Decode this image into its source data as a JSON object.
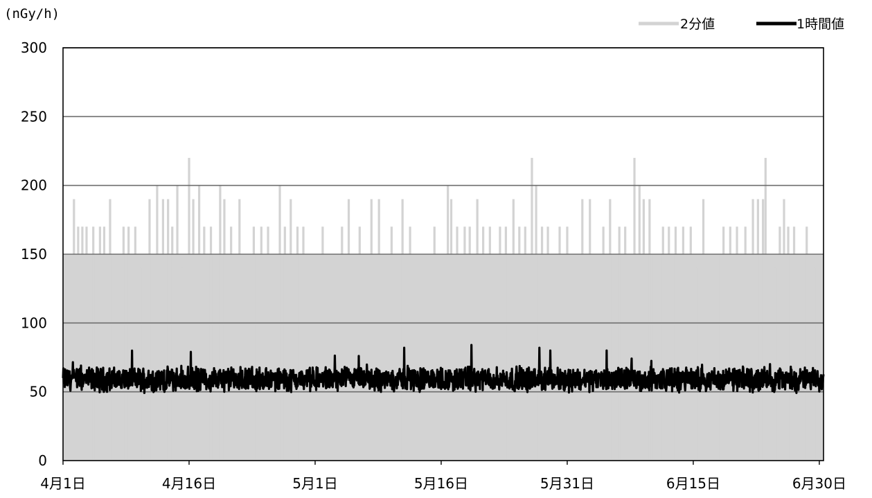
{
  "chart_data": {
    "type": "line",
    "unit_label": "(nGy/h)",
    "title": "",
    "ylim": [
      0,
      300
    ],
    "y_ticks": [
      0,
      50,
      100,
      150,
      200,
      250,
      300
    ],
    "x_tick_labels": [
      "4月1日",
      "4月16日",
      "5月1日",
      "5月16日",
      "5月31日",
      "6月15日",
      "6月30日"
    ],
    "x_tick_days": [
      0,
      15,
      30,
      45,
      60,
      75,
      90
    ],
    "x_range_days": [
      0,
      90.5
    ],
    "grid": true,
    "legend_position": "top-right",
    "series": [
      {
        "name": "2分値",
        "color": "#d3d3d3",
        "description": "two-minute readings (dense, filled look)",
        "baseline": 150,
        "spikes": [
          [
            0.3,
            140
          ],
          [
            0.7,
            120
          ],
          [
            1.3,
            190
          ],
          [
            1.8,
            170
          ],
          [
            2.3,
            170
          ],
          [
            2.8,
            170
          ],
          [
            3.6,
            170
          ],
          [
            4.4,
            170
          ],
          [
            4.9,
            170
          ],
          [
            5.6,
            190
          ],
          [
            6.2,
            150
          ],
          [
            7.2,
            170
          ],
          [
            7.8,
            170
          ],
          [
            8.6,
            170
          ],
          [
            9.2,
            140
          ],
          [
            10.3,
            190
          ],
          [
            11.2,
            200
          ],
          [
            11.9,
            190
          ],
          [
            12.5,
            190
          ],
          [
            13.0,
            170
          ],
          [
            13.6,
            200
          ],
          [
            14.2,
            140
          ],
          [
            15.0,
            220
          ],
          [
            15.5,
            190
          ],
          [
            16.2,
            200
          ],
          [
            16.8,
            170
          ],
          [
            17.6,
            170
          ],
          [
            18.7,
            200
          ],
          [
            19.2,
            190
          ],
          [
            20.0,
            170
          ],
          [
            21.0,
            190
          ],
          [
            21.9,
            150
          ],
          [
            22.7,
            170
          ],
          [
            23.6,
            170
          ],
          [
            24.4,
            170
          ],
          [
            25.8,
            200
          ],
          [
            26.4,
            170
          ],
          [
            27.1,
            190
          ],
          [
            27.9,
            170
          ],
          [
            28.6,
            170
          ],
          [
            29.6,
            150
          ],
          [
            30.2,
            150
          ],
          [
            30.9,
            170
          ],
          [
            32.5,
            150
          ],
          [
            33.2,
            170
          ],
          [
            34.0,
            190
          ],
          [
            35.3,
            170
          ],
          [
            36.7,
            190
          ],
          [
            37.6,
            190
          ],
          [
            39.1,
            170
          ],
          [
            40.4,
            190
          ],
          [
            41.3,
            170
          ],
          [
            42.0,
            150
          ],
          [
            44.2,
            170
          ],
          [
            45.8,
            200
          ],
          [
            46.2,
            190
          ],
          [
            46.9,
            170
          ],
          [
            47.8,
            170
          ],
          [
            48.4,
            170
          ],
          [
            49.3,
            190
          ],
          [
            50.0,
            170
          ],
          [
            50.8,
            170
          ],
          [
            51.5,
            120
          ],
          [
            52.0,
            170
          ],
          [
            52.7,
            170
          ],
          [
            53.6,
            190
          ],
          [
            54.3,
            170
          ],
          [
            55.0,
            170
          ],
          [
            55.8,
            220
          ],
          [
            56.3,
            200
          ],
          [
            57.0,
            170
          ],
          [
            57.7,
            170
          ],
          [
            58.4,
            150
          ],
          [
            59.1,
            170
          ],
          [
            60.0,
            170
          ],
          [
            60.8,
            150
          ],
          [
            61.8,
            190
          ],
          [
            62.7,
            190
          ],
          [
            63.4,
            150
          ],
          [
            64.3,
            170
          ],
          [
            65.1,
            190
          ],
          [
            66.2,
            170
          ],
          [
            66.9,
            170
          ],
          [
            68.0,
            220
          ],
          [
            68.6,
            200
          ],
          [
            69.1,
            190
          ],
          [
            69.8,
            190
          ],
          [
            70.3,
            150
          ],
          [
            71.4,
            170
          ],
          [
            72.1,
            170
          ],
          [
            72.9,
            170
          ],
          [
            73.8,
            170
          ],
          [
            74.7,
            170
          ],
          [
            75.4,
            140
          ],
          [
            76.2,
            190
          ],
          [
            77.2,
            150
          ],
          [
            78.0,
            150
          ],
          [
            78.6,
            170
          ],
          [
            79.4,
            170
          ],
          [
            80.2,
            170
          ],
          [
            81.2,
            170
          ],
          [
            82.1,
            190
          ],
          [
            82.7,
            190
          ],
          [
            83.3,
            190
          ],
          [
            83.6,
            220
          ],
          [
            84.2,
            150
          ],
          [
            84.8,
            140
          ],
          [
            85.3,
            170
          ],
          [
            85.8,
            190
          ],
          [
            86.3,
            170
          ],
          [
            87.0,
            170
          ],
          [
            87.8,
            150
          ],
          [
            88.5,
            170
          ],
          [
            89.4,
            140
          ],
          [
            90.2,
            150
          ]
        ]
      },
      {
        "name": "1時間値",
        "color": "#000000",
        "description": "hourly readings (noisy band)",
        "level_mean": 59,
        "level_min": 40,
        "level_max": 84,
        "peaks": [
          [
            40.6,
            82
          ],
          [
            48.6,
            84
          ],
          [
            56.7,
            82
          ],
          [
            58.0,
            80
          ],
          [
            15.2,
            79
          ],
          [
            64.7,
            80
          ],
          [
            35.2,
            76
          ]
        ]
      }
    ]
  }
}
